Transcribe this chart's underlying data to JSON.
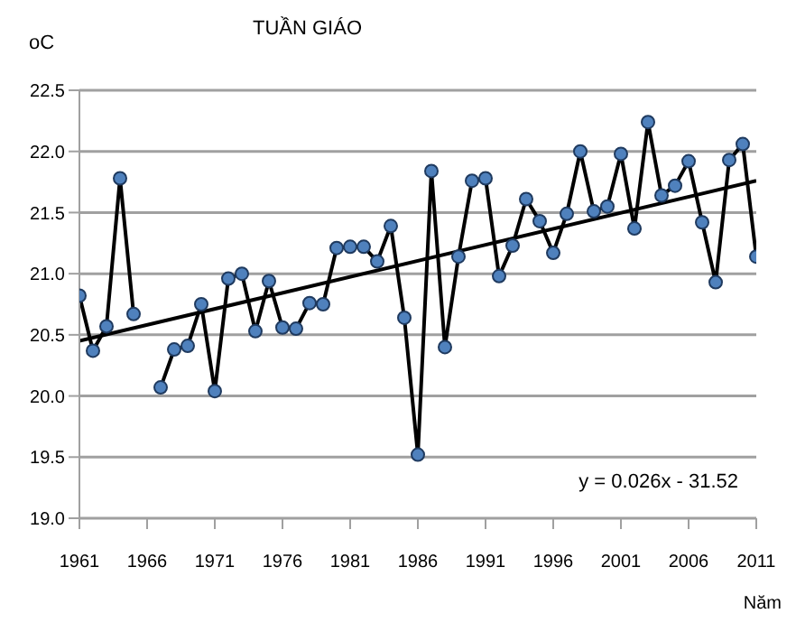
{
  "chart_data": {
    "type": "line",
    "title": "TUẦN GIÁO",
    "xlabel": "Năm",
    "ylabel": "oC",
    "x": [
      1961,
      1962,
      1963,
      1964,
      1965,
      1966,
      1967,
      1968,
      1969,
      1970,
      1971,
      1972,
      1973,
      1974,
      1975,
      1976,
      1977,
      1978,
      1979,
      1980,
      1981,
      1982,
      1983,
      1984,
      1985,
      1986,
      1987,
      1988,
      1989,
      1990,
      1991,
      1992,
      1993,
      1994,
      1995,
      1996,
      1997,
      1998,
      1999,
      2000,
      2001,
      2002,
      2003,
      2004,
      2005,
      2006,
      2007,
      2008,
      2009,
      2010,
      2011
    ],
    "series": [
      {
        "color": "#000000",
        "marker": "circle",
        "values": [
          20.82,
          20.37,
          20.57,
          21.78,
          20.67,
          null,
          20.07,
          20.38,
          20.41,
          20.75,
          20.04,
          20.96,
          21.0,
          20.53,
          20.94,
          20.56,
          20.55,
          20.76,
          20.75,
          21.21,
          21.22,
          21.22,
          21.1,
          21.39,
          20.64,
          19.52,
          21.84,
          20.4,
          21.14,
          21.76,
          21.78,
          20.98,
          21.23,
          21.61,
          21.43,
          21.17,
          21.49,
          22.0,
          21.51,
          21.55,
          21.98,
          21.37,
          22.24,
          21.64,
          21.72,
          21.92,
          21.42,
          20.93,
          21.93,
          22.06,
          21.14
        ]
      },
      {
        "type": "line",
        "color": "#000000",
        "marker": "none",
        "x": [
          1961,
          2011
        ],
        "values": [
          20.45,
          21.76
        ]
      }
    ],
    "annotations": [
      "y = 0.026x - 31.52"
    ],
    "xlim": [
      1961,
      2011
    ],
    "xticks": [
      1961,
      1966,
      1971,
      1976,
      1981,
      1986,
      1991,
      1996,
      2001,
      2006,
      2011
    ],
    "ylim": [
      19.0,
      22.5
    ],
    "yticks": [
      {
        "value": 19,
        "label": "19.0"
      },
      19.5,
      {
        "value": 20,
        "label": "20.0"
      },
      20.5,
      {
        "value": 21,
        "label": "21.0"
      },
      21.5,
      {
        "value": 22,
        "label": "22.0"
      },
      22.5
    ],
    "grid": "y"
  }
}
